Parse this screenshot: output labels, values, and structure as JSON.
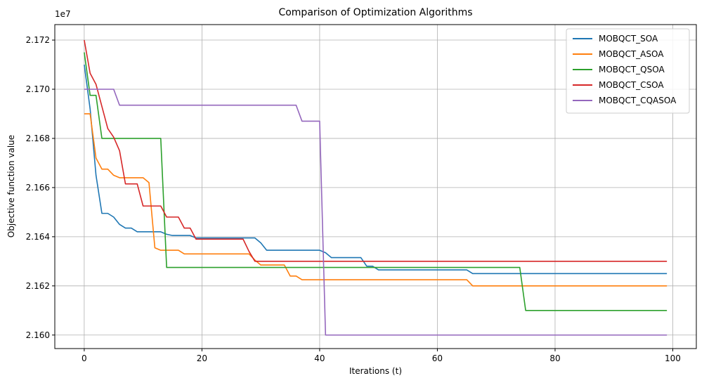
{
  "chart_data": {
    "type": "line",
    "title": "Comparison of Optimization Algorithms",
    "xlabel": "Iterations (t)",
    "ylabel": "Objective function value",
    "offset_text": "1e7",
    "xlim": [
      -5,
      104
    ],
    "ylim": [
      21.5945,
      21.7263
    ],
    "y_scale_note": "values in units of 1e6 (axis offset 1e7)",
    "xticks": [
      0,
      20,
      40,
      60,
      80,
      100
    ],
    "xtick_labels": [
      "0",
      "20",
      "40",
      "60",
      "80",
      "100"
    ],
    "yticks": [
      21.6,
      21.62,
      21.64,
      21.66,
      21.68,
      21.7,
      21.72
    ],
    "ytick_labels": [
      "2.160",
      "2.162",
      "2.164",
      "2.166",
      "2.168",
      "2.170",
      "2.172"
    ],
    "grid": true,
    "legend_position": "top-right",
    "series": [
      {
        "name": "MOBQCT_SOA",
        "color": "#1f77b4",
        "points": [
          [
            0,
            21.71
          ],
          [
            1,
            21.692
          ],
          [
            2,
            21.665
          ],
          [
            3,
            21.6495
          ],
          [
            4,
            21.6495
          ],
          [
            5,
            21.648
          ],
          [
            6,
            21.645
          ],
          [
            7,
            21.6435
          ],
          [
            8,
            21.6435
          ],
          [
            9,
            21.642
          ],
          [
            13,
            21.642
          ],
          [
            14,
            21.641
          ],
          [
            15,
            21.6405
          ],
          [
            18,
            21.6405
          ],
          [
            19,
            21.6395
          ],
          [
            29,
            21.6395
          ],
          [
            30,
            21.6375
          ],
          [
            31,
            21.6345
          ],
          [
            40,
            21.6345
          ],
          [
            41,
            21.6335
          ],
          [
            42,
            21.6315
          ],
          [
            47,
            21.6315
          ],
          [
            48,
            21.628
          ],
          [
            49,
            21.628
          ],
          [
            50,
            21.6265
          ],
          [
            65,
            21.6265
          ],
          [
            66,
            21.625
          ],
          [
            99,
            21.625
          ]
        ]
      },
      {
        "name": "MOBQCT_ASOA",
        "color": "#ff7f0e",
        "points": [
          [
            0,
            21.69
          ],
          [
            1,
            21.69
          ],
          [
            2,
            21.672
          ],
          [
            3,
            21.6675
          ],
          [
            4,
            21.6675
          ],
          [
            5,
            21.665
          ],
          [
            6,
            21.664
          ],
          [
            10,
            21.664
          ],
          [
            11,
            21.662
          ],
          [
            12,
            21.6355
          ],
          [
            13,
            21.6345
          ],
          [
            16,
            21.6345
          ],
          [
            17,
            21.633
          ],
          [
            28,
            21.633
          ],
          [
            29,
            21.6305
          ],
          [
            30,
            21.6285
          ],
          [
            34,
            21.6285
          ],
          [
            35,
            21.624
          ],
          [
            36,
            21.624
          ],
          [
            37,
            21.6225
          ],
          [
            65,
            21.6225
          ],
          [
            66,
            21.62
          ],
          [
            99,
            21.62
          ]
        ]
      },
      {
        "name": "MOBQCT_QSOA",
        "color": "#2ca02c",
        "points": [
          [
            0,
            21.715
          ],
          [
            1,
            21.6975
          ],
          [
            2,
            21.6975
          ],
          [
            3,
            21.68
          ],
          [
            13,
            21.68
          ],
          [
            14,
            21.6275
          ],
          [
            74,
            21.6275
          ],
          [
            75,
            21.61
          ],
          [
            99,
            21.61
          ]
        ]
      },
      {
        "name": "MOBQCT_CSOA",
        "color": "#d62728",
        "points": [
          [
            0,
            21.72
          ],
          [
            1,
            21.7065
          ],
          [
            2,
            21.702
          ],
          [
            3,
            21.693
          ],
          [
            4,
            21.684
          ],
          [
            5,
            21.6805
          ],
          [
            6,
            21.675
          ],
          [
            7,
            21.6615
          ],
          [
            9,
            21.6615
          ],
          [
            10,
            21.6525
          ],
          [
            13,
            21.6525
          ],
          [
            14,
            21.648
          ],
          [
            16,
            21.648
          ],
          [
            17,
            21.6435
          ],
          [
            18,
            21.6435
          ],
          [
            19,
            21.639
          ],
          [
            27,
            21.639
          ],
          [
            28,
            21.634
          ],
          [
            29,
            21.63
          ],
          [
            99,
            21.63
          ]
        ]
      },
      {
        "name": "MOBQCT_CQASOA",
        "color": "#9467bd",
        "points": [
          [
            0,
            21.7
          ],
          [
            5,
            21.7
          ],
          [
            6,
            21.6935
          ],
          [
            36,
            21.6935
          ],
          [
            37,
            21.687
          ],
          [
            40,
            21.687
          ],
          [
            41,
            21.6
          ],
          [
            99,
            21.6
          ]
        ]
      }
    ]
  }
}
